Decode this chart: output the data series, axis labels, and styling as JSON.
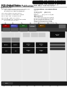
{
  "page_bg": "#ffffff",
  "barcode_color": "#111111",
  "diagram_outer_bg": "#cccccc",
  "diagram_inner_bg": "#e8e8e8",
  "diagram_dark_header": "#444444",
  "diagram_black_bg": "#111111",
  "panel_dark": "#1a1a1a",
  "panel_mid": "#333333",
  "panel_light_border": "#888888",
  "white": "#ffffff",
  "light_gray": "#dddddd",
  "medium_gray": "#999999"
}
